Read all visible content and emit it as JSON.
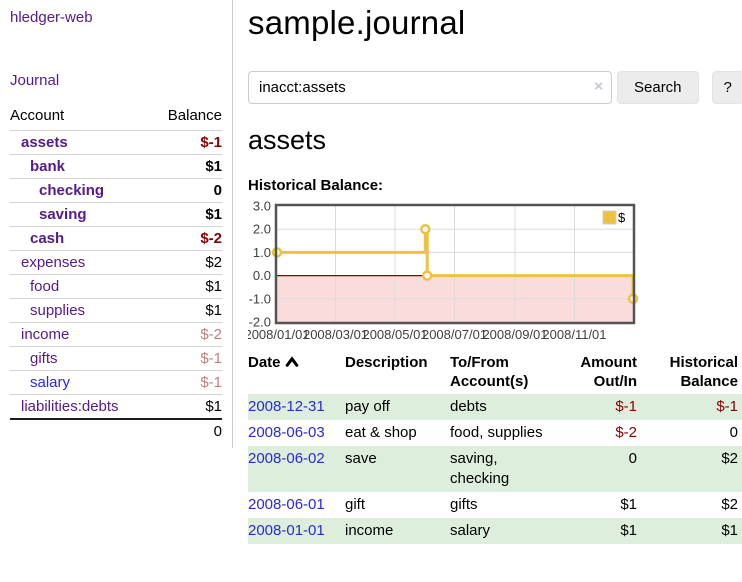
{
  "app": {
    "brand": "hledger-web",
    "nav_journal": "Journal"
  },
  "colors": {
    "link_purple": "#551a8b",
    "link_blue": "#2a2ad4",
    "negative": "#8b0000",
    "negative_muted": "#bf7f7f",
    "row_shade": "#ddeedd",
    "accent_gold": "#edc240"
  },
  "sidebar": {
    "columns": {
      "account": "Account",
      "balance": "Balance"
    },
    "accounts": [
      {
        "name": "assets",
        "indent": 0,
        "bold": true,
        "balance": "$-1",
        "balance_tone": "neg-strong"
      },
      {
        "name": "bank",
        "indent": 1,
        "bold": true,
        "balance": "$1"
      },
      {
        "name": "checking",
        "indent": 2,
        "bold": true,
        "balance": "0"
      },
      {
        "name": "saving",
        "indent": 2,
        "bold": true,
        "balance": "$1"
      },
      {
        "name": "cash",
        "indent": 1,
        "bold": true,
        "balance": "$-2",
        "balance_tone": "neg-strong"
      },
      {
        "name": "expenses",
        "indent": 0,
        "bold": false,
        "balance": "$2"
      },
      {
        "name": "food",
        "indent": 1,
        "bold": false,
        "balance": "$1"
      },
      {
        "name": "supplies",
        "indent": 1,
        "bold": false,
        "balance": "$1"
      },
      {
        "name": "income",
        "indent": 0,
        "bold": false,
        "balance": "$-2",
        "balance_tone": "neg-soft"
      },
      {
        "name": "gifts",
        "indent": 1,
        "bold": false,
        "balance": "$-1",
        "balance_tone": "neg-soft"
      },
      {
        "name": "salary",
        "indent": 1,
        "bold": false,
        "link": "blue",
        "balance": "$-1",
        "balance_tone": "neg-soft"
      },
      {
        "name": "liabilities:debts",
        "indent": 0,
        "bold": false,
        "balance": "$1"
      }
    ],
    "total": "0"
  },
  "header": {
    "title": "sample.journal"
  },
  "search": {
    "value": "inacct:assets",
    "clear_icon": "×",
    "button": "Search",
    "help_button": "?"
  },
  "account_page": {
    "heading": "assets",
    "chart_label": "Historical Balance:"
  },
  "chart_data": {
    "type": "line",
    "title": "Historical Balance:",
    "legend": {
      "label": "$",
      "position": "top-right"
    },
    "series": [
      {
        "name": "$",
        "color": "#edc240",
        "steps": true,
        "points": [
          [
            "2008-01-01",
            1
          ],
          [
            "2008-06-01",
            2
          ],
          [
            "2008-06-03",
            0
          ],
          [
            "2008-12-31",
            -1
          ]
        ]
      }
    ],
    "xlim": [
      "2008-01-01",
      "2008-12-31"
    ],
    "ylim": [
      -2,
      3
    ],
    "x_ticks": [
      {
        "date": "2008-01-01",
        "label": "2008/01/01"
      },
      {
        "date": "2008-03-01",
        "label": "2008/03/01"
      },
      {
        "date": "2008-05-01",
        "label": "2008/05/01"
      },
      {
        "date": "2008-07-01",
        "label": "2008/07/01"
      },
      {
        "date": "2008-09-01",
        "label": "2008/09/01"
      },
      {
        "date": "2008-11-01",
        "label": "2008/11/01"
      }
    ],
    "y_ticks": [
      3.0,
      2.0,
      1.0,
      0.0,
      -1.0,
      -2.0
    ],
    "grid": true,
    "negative_region_color": "#fadcdc",
    "zero_line_color": "#8b0000",
    "border_color": "#545454",
    "gridline_color": "#dcdcdc",
    "tick_label_color": "#3f3f3f"
  },
  "register": {
    "columns": [
      {
        "label": "Date",
        "sort": "ascending"
      },
      {
        "label": "Description"
      },
      {
        "label": "To/From\nAccount(s)"
      },
      {
        "label": "Amount\nOut/In",
        "align": "right"
      },
      {
        "label": "Historical\nBalance",
        "align": "right"
      }
    ],
    "rows": [
      {
        "date": "2008-12-31",
        "description": "pay off",
        "accounts": "debts",
        "amount": "$-1",
        "amount_negative": true,
        "balance": "$-1",
        "balance_negative": true,
        "shaded": true
      },
      {
        "date": "2008-06-03",
        "description": "eat & shop",
        "accounts": "food, supplies",
        "amount": "$-2",
        "amount_negative": true,
        "balance": "0",
        "balance_negative": false,
        "shaded": false
      },
      {
        "date": "2008-06-02",
        "description": "save",
        "accounts": "saving, checking",
        "amount": "0",
        "amount_negative": false,
        "balance": "$2",
        "balance_negative": false,
        "shaded": true
      },
      {
        "date": "2008-06-01",
        "description": "gift",
        "accounts": "gifts",
        "amount": "$1",
        "amount_negative": false,
        "balance": "$2",
        "balance_negative": false,
        "shaded": false
      },
      {
        "date": "2008-01-01",
        "description": "income",
        "accounts": "salary",
        "amount": "$1",
        "amount_negative": false,
        "balance": "$1",
        "balance_negative": false,
        "shaded": true
      }
    ]
  }
}
